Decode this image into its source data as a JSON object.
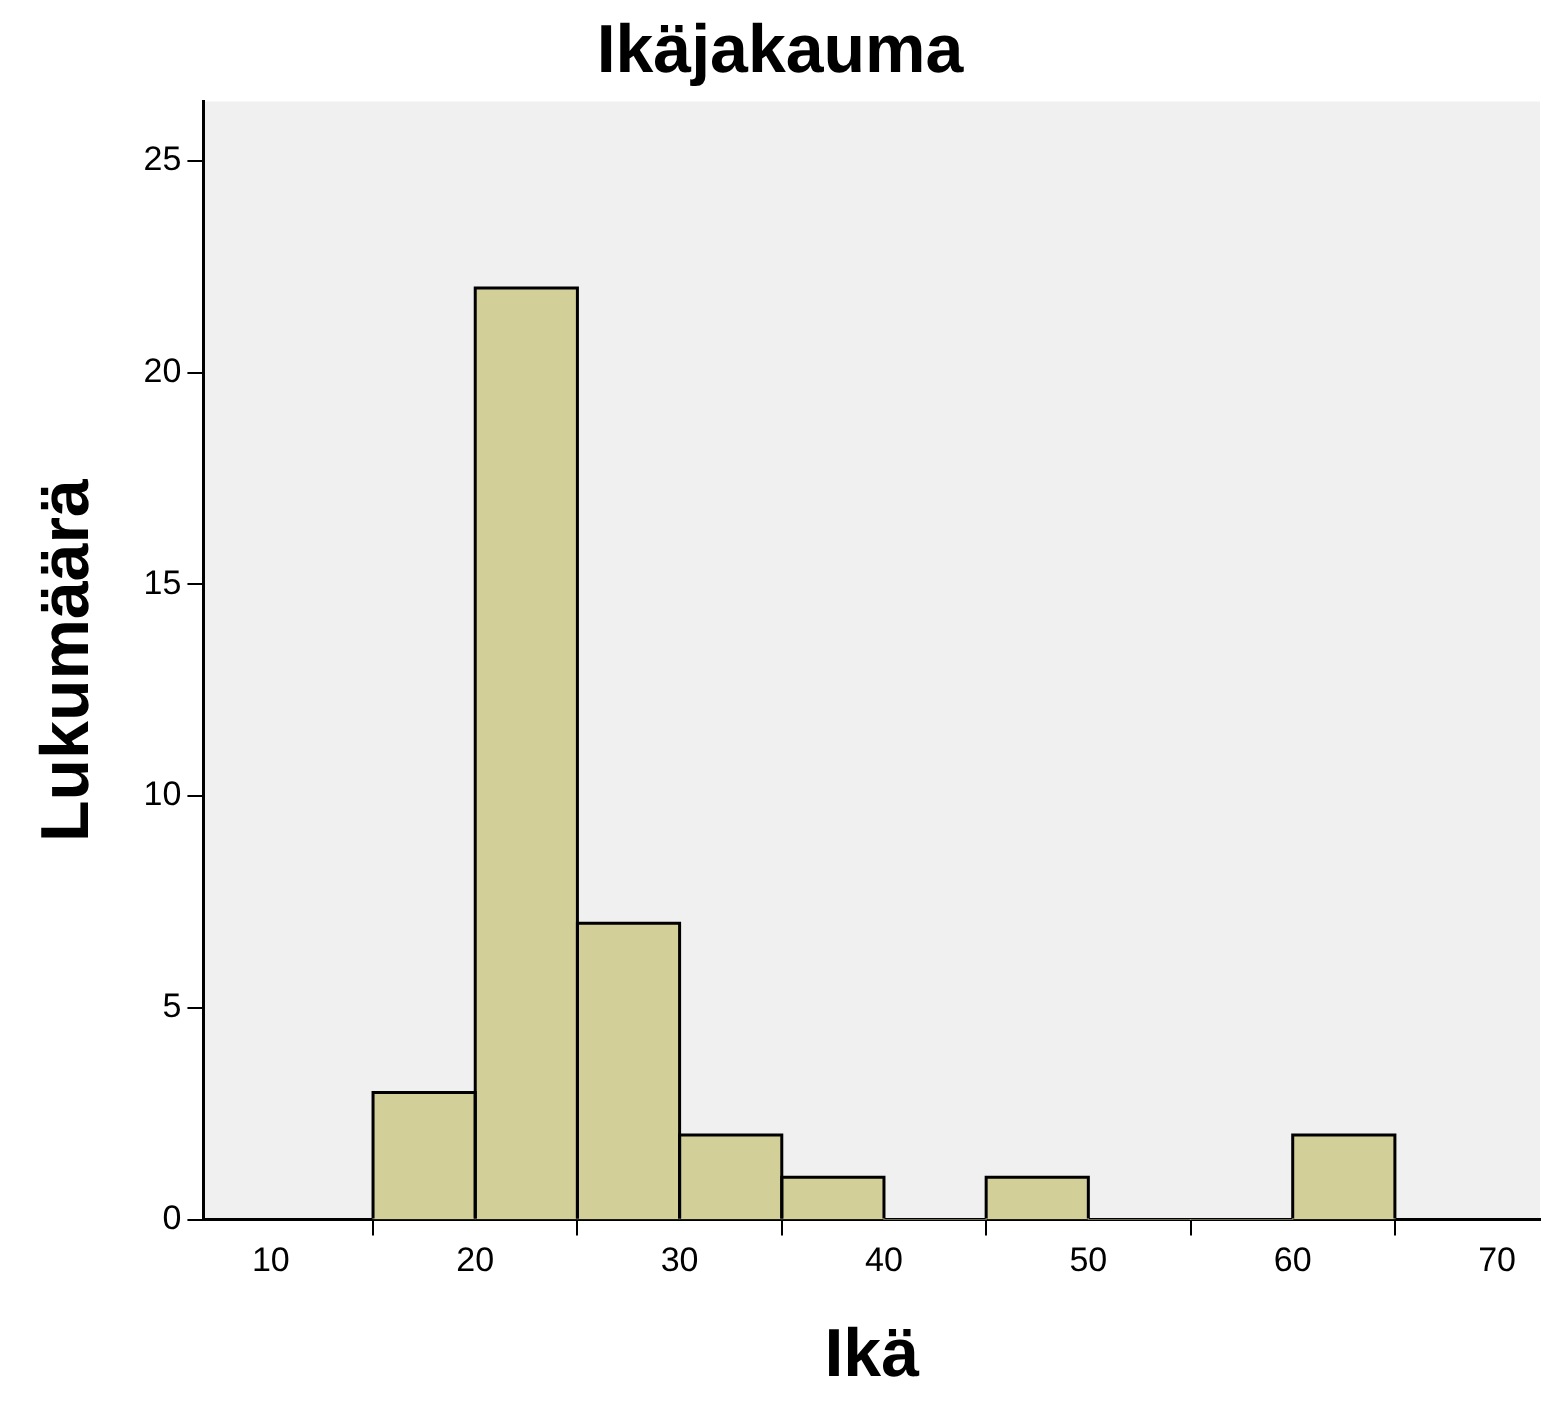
{
  "chart_data": {
    "type": "histogram",
    "title": "Ikäjakauma",
    "xlabel": "Ikä",
    "ylabel": "Lukumäärä",
    "bins": [
      15,
      20,
      25,
      30,
      35,
      40,
      45,
      50,
      55,
      60,
      65
    ],
    "values": [
      3,
      22,
      7,
      2,
      1,
      0,
      1,
      0,
      0,
      2
    ],
    "color": "#d3cf99",
    "xlim": [
      6.7,
      72.1
    ],
    "xticks": [
      10,
      20,
      30,
      40,
      50,
      60,
      70
    ],
    "ylim": [
      0,
      26.4
    ],
    "yticks": [
      0,
      5,
      10,
      15,
      20,
      25
    ],
    "grid": false,
    "legend": false
  }
}
